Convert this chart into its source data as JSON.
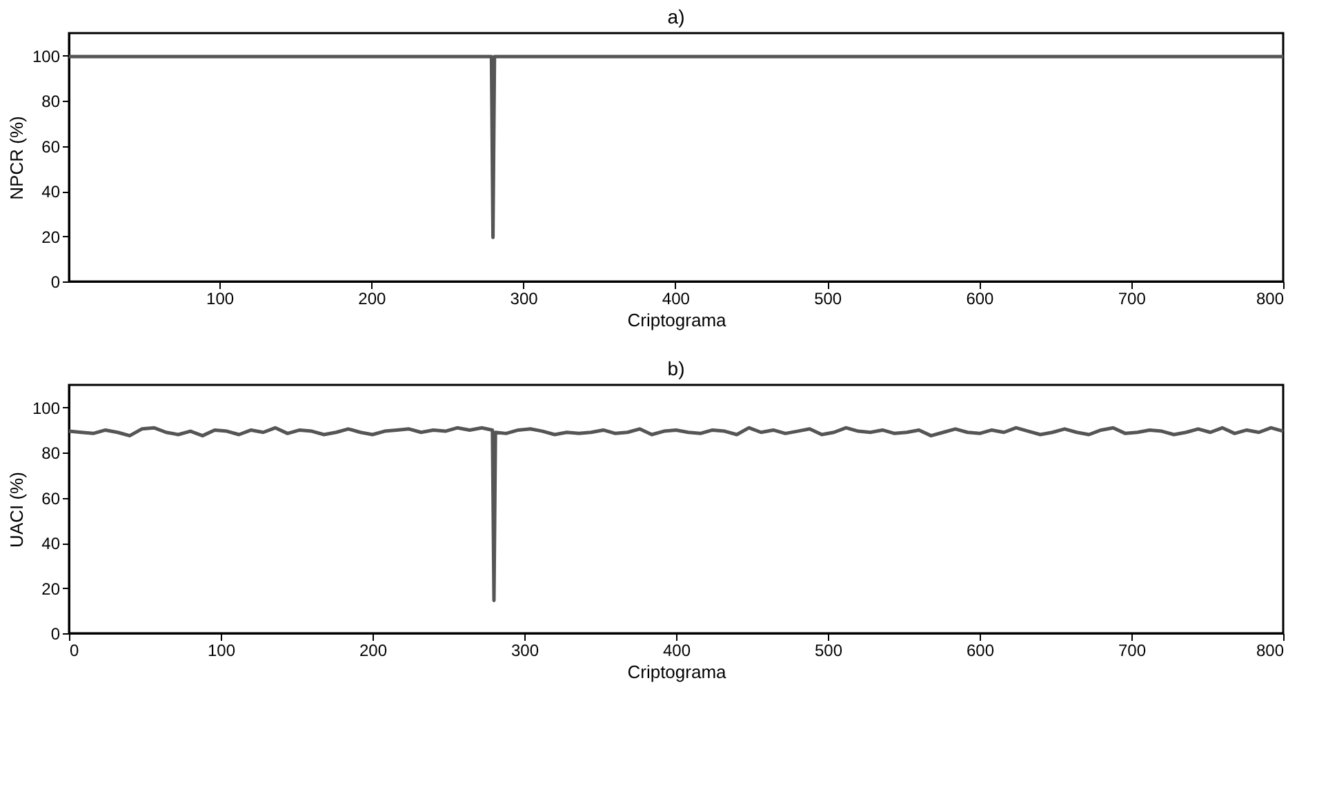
{
  "chart_data": [
    {
      "type": "line",
      "title": "a)",
      "xlabel": "Criptograma",
      "ylabel": "NPCR (%)",
      "xlim": [
        1,
        800
      ],
      "xticks": [
        100,
        200,
        300,
        400,
        500,
        600,
        700,
        800
      ],
      "ylim": [
        0,
        110
      ],
      "yticks": [
        0,
        20,
        40,
        60,
        80,
        100
      ],
      "grid": false,
      "series": [
        {
          "color": "#555555",
          "x": [
            1,
            50,
            100,
            150,
            200,
            250,
            278,
            279,
            280,
            281,
            282,
            300,
            350,
            400,
            450,
            500,
            550,
            600,
            650,
            700,
            750,
            800
          ],
          "values": [
            99.6,
            99.6,
            99.6,
            99.6,
            99.6,
            99.6,
            99.6,
            99.6,
            19.5,
            99.6,
            99.6,
            99.6,
            99.6,
            99.6,
            99.6,
            99.6,
            99.6,
            99.6,
            99.6,
            99.6,
            99.6,
            99.6
          ]
        }
      ]
    },
    {
      "type": "line",
      "title": "b)",
      "xlabel": "Criptograma",
      "ylabel": "UACI (%)",
      "xlim": [
        0,
        800
      ],
      "xticks": [
        0,
        100,
        200,
        300,
        400,
        500,
        600,
        700,
        800
      ],
      "ylim": [
        0,
        110
      ],
      "yticks": [
        0,
        20,
        40,
        60,
        80,
        100
      ],
      "grid": false,
      "series": [
        {
          "color": "#555555",
          "x": [
            0,
            8,
            16,
            24,
            32,
            40,
            48,
            56,
            64,
            72,
            80,
            88,
            96,
            104,
            112,
            120,
            128,
            136,
            144,
            152,
            160,
            168,
            176,
            184,
            192,
            200,
            208,
            216,
            224,
            232,
            240,
            248,
            256,
            264,
            272,
            279,
            280,
            281,
            288,
            296,
            304,
            312,
            320,
            328,
            336,
            344,
            352,
            360,
            368,
            376,
            384,
            392,
            400,
            408,
            416,
            424,
            432,
            440,
            448,
            456,
            464,
            472,
            480,
            488,
            496,
            504,
            512,
            520,
            528,
            536,
            544,
            552,
            560,
            568,
            576,
            584,
            592,
            600,
            608,
            616,
            624,
            632,
            640,
            648,
            656,
            664,
            672,
            680,
            688,
            696,
            704,
            712,
            720,
            728,
            736,
            744,
            752,
            760,
            768,
            776,
            784,
            792,
            800
          ],
          "values": [
            89.5,
            89,
            88.5,
            90,
            89,
            87.5,
            90.5,
            91,
            89,
            88,
            89.5,
            87.5,
            90,
            89.5,
            88,
            90,
            89,
            91,
            88.5,
            90,
            89.5,
            88,
            89,
            90.5,
            89,
            88,
            89.5,
            90,
            90.5,
            89,
            90,
            89.5,
            91,
            90,
            91,
            90,
            14.5,
            89,
            88.5,
            90,
            90.5,
            89.5,
            88,
            89,
            88.5,
            89,
            90,
            88.5,
            89,
            90.5,
            88,
            89.5,
            90,
            89,
            88.5,
            90,
            89.5,
            88,
            91,
            89,
            90,
            88.5,
            89.5,
            90.5,
            88,
            89,
            91,
            89.5,
            89,
            90,
            88.5,
            89,
            90,
            87.5,
            89,
            90.5,
            89,
            88.5,
            90,
            89,
            91,
            89.5,
            88,
            89,
            90.5,
            89,
            88,
            90,
            91,
            88.5,
            89,
            90,
            89.5,
            88,
            89,
            90.5,
            89,
            91,
            88.5,
            90,
            89,
            91,
            89.5
          ]
        }
      ]
    }
  ]
}
